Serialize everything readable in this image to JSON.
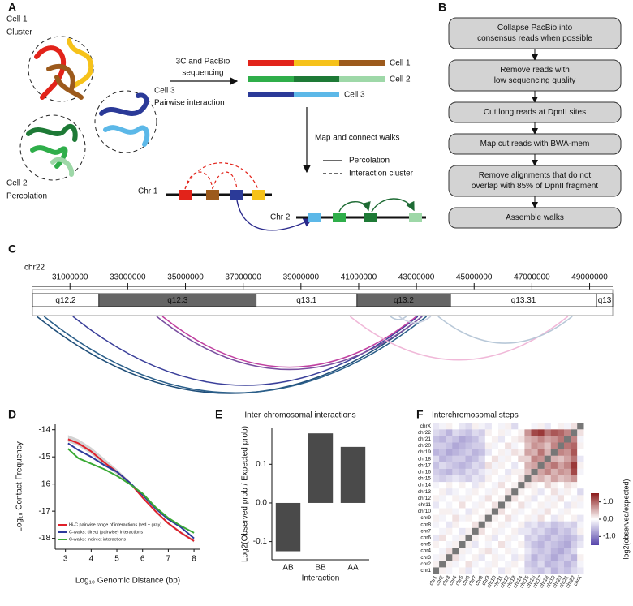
{
  "panel_labels": [
    "A",
    "B",
    "C",
    "D",
    "E",
    "F"
  ],
  "panel_a": {
    "cell1": "Cell 1",
    "cell1_type": "Cluster",
    "cell2": "Cell 2",
    "cell2_type": "Percolation",
    "cell3": "Cell 3",
    "cell3_type": "Pairwise interaction",
    "step1_line1": "3C and PacBio",
    "step1_line2": "sequencing",
    "read_labels": [
      "Cell 1",
      "Cell 2",
      "Cell 3"
    ],
    "step2": "Map and connect walks",
    "legend": [
      "Percolation",
      "Interaction cluster"
    ],
    "chromosomes": [
      "Chr 1",
      "Chr 2"
    ]
  },
  "panel_b": {
    "steps": [
      [
        "Collapse PacBio into",
        "consensus reads when possible"
      ],
      [
        "Remove reads with",
        "low sequencing quality"
      ],
      [
        "Cut long reads at DpnII sites"
      ],
      [
        "Map cut reads with BWA-mem"
      ],
      [
        "Remove alignments that do not",
        "overlap with 85% of DpnII fragment"
      ],
      [
        "Assemble walks"
      ]
    ]
  },
  "panel_c": {
    "chromosome": "chr22",
    "xlim": [
      29700000,
      49800000
    ],
    "xticks": [
      31000000,
      33000000,
      35000000,
      37000000,
      39000000,
      41000000,
      43000000,
      45000000,
      47000000,
      49000000
    ],
    "bands": [
      {
        "name": "q12.2",
        "start": 29700000,
        "end": 32000000,
        "color": "#ffffff"
      },
      {
        "name": "q12.3",
        "start": 32000000,
        "end": 37450000,
        "color": "#666666"
      },
      {
        "name": "q13.1",
        "start": 37450000,
        "end": 40940000,
        "color": "#ffffff"
      },
      {
        "name": "q13.2",
        "start": 40940000,
        "end": 44180000,
        "color": "#666666"
      },
      {
        "name": "q13.31",
        "start": 44180000,
        "end": 49240000,
        "color": "#ffffff"
      },
      {
        "name": "q13",
        "start": 49240000,
        "end": 49800000,
        "color": "#ffffff"
      }
    ],
    "arcs": [
      {
        "start": 29850000,
        "end": 43200000,
        "color": "#1f4e79"
      },
      {
        "start": 30100000,
        "end": 43350000,
        "color": "#2b5f8a"
      },
      {
        "start": 31100000,
        "end": 43050000,
        "color": "#3a3f9a"
      },
      {
        "start": 34000000,
        "end": 43200000,
        "color": "#7a4fa0"
      },
      {
        "start": 34200000,
        "end": 43000000,
        "color": "#c040a0"
      },
      {
        "start": 40700000,
        "end": 48250000,
        "color": "#f0b8d8"
      },
      {
        "start": 43750000,
        "end": 48400000,
        "color": "#b8c8d8"
      },
      {
        "start": 42100000,
        "end": 42650000,
        "color": "#b8c8d8"
      },
      {
        "start": 42400000,
        "end": 43500000,
        "color": "#c8d0e0"
      }
    ]
  },
  "chart_data": [
    {
      "type": "line",
      "xlabel": "Log₁₀ Genomic Distance (bp)",
      "ylabel": "Log₁₀ Contact Frequency",
      "x": [
        3.1,
        3.5,
        4,
        4.5,
        5,
        5.5,
        6,
        6.5,
        7,
        7.5,
        8
      ],
      "xlim": [
        2.6,
        8.25
      ],
      "xticks": [
        3,
        4,
        5,
        6,
        7,
        8
      ],
      "ylim": [
        -18.4,
        -13.8
      ],
      "yticks": [
        -14,
        -15,
        -16,
        -17,
        -18
      ],
      "legend": "lower left",
      "band": {
        "color": "#c8c8c8",
        "upper": [
          -14.2,
          -14.35,
          -14.65,
          -15.05,
          -15.45,
          -15.9,
          -16.45,
          -16.95,
          -17.4,
          -17.75,
          -18.05
        ],
        "lower": [
          -14.45,
          -14.6,
          -14.9,
          -15.3,
          -15.65,
          -16.0,
          -16.55,
          -17.05,
          -17.5,
          -17.85,
          -18.15
        ]
      },
      "series": [
        {
          "name": "Hi-C pairwise range of interactions (red + gray)",
          "color": "#e0202a",
          "values": [
            -14.35,
            -14.5,
            -14.8,
            -15.2,
            -15.55,
            -15.95,
            -16.5,
            -17.0,
            -17.45,
            -17.8,
            -18.1
          ]
        },
        {
          "name": "C-walks: direct (pairwise) interactions",
          "color": "#2d3a9c",
          "values": [
            -14.5,
            -14.75,
            -15.0,
            -15.3,
            -15.55,
            -15.95,
            -16.4,
            -16.9,
            -17.3,
            -17.6,
            -18.0
          ]
        },
        {
          "name": "C-walks: indirect interactions",
          "color": "#3aaa35",
          "values": [
            -14.7,
            -15.05,
            -15.25,
            -15.45,
            -15.7,
            -16.0,
            -16.35,
            -16.85,
            -17.25,
            -17.55,
            -17.8
          ]
        }
      ]
    },
    {
      "type": "bar",
      "title": "Inter-chromosomal interactions",
      "xlabel": "Interaction",
      "ylabel": "Log2(Observed prob / Expected prob)",
      "categories": [
        "AB",
        "BB",
        "AA"
      ],
      "values": [
        -0.125,
        0.18,
        0.145
      ],
      "color": "#4a4a4a",
      "ylim": [
        -0.147,
        0.193
      ],
      "yticks": [
        -0.1,
        {
          "value": 0,
          "label": "0.0"
        },
        0.1
      ]
    },
    {
      "type": "heatmap",
      "title": "Interchromosomal steps",
      "categories": [
        "chr1",
        "chr2",
        "chr3",
        "chr4",
        "chr5",
        "chr6",
        "chr7",
        "chr8",
        "chr9",
        "chr10",
        "chr11",
        "chr12",
        "chr13",
        "chr14",
        "chr15",
        "chr16",
        "chr17",
        "chr18",
        "chr19",
        "chr20",
        "chr21",
        "chr22",
        "chrX"
      ],
      "null_color": "#777777",
      "colorbar": {
        "label": "log2(observed/expected)",
        "lim": [
          -1.5,
          1.5
        ],
        "colors": [
          "#5544aa",
          "#ffffff",
          "#8b1a1a"
        ],
        "ticks": [
          {
            "value": 1,
            "label": "1.0"
          },
          {
            "value": 0,
            "label": "0.0"
          },
          {
            "value": -1,
            "label": "-1.0"
          }
        ]
      },
      "values": [
        [
          null,
          0.1,
          -0.1,
          0.0,
          0.1,
          -0.2,
          0.0,
          -0.1,
          0.1,
          0.0,
          -0.2,
          0.1,
          0.0,
          -0.1,
          -0.3,
          -0.4,
          -0.5,
          -0.3,
          -0.6,
          -0.4,
          -0.5,
          -0.3,
          -0.2
        ],
        [
          0.1,
          null,
          0.1,
          -0.1,
          0.0,
          0.2,
          -0.1,
          0.0,
          -0.1,
          0.1,
          0.0,
          -0.1,
          0.1,
          0.0,
          -0.4,
          -0.5,
          -0.3,
          -0.6,
          -0.5,
          -0.4,
          -0.6,
          -0.4,
          -0.1
        ],
        [
          -0.1,
          0.1,
          null,
          0.2,
          -0.1,
          0.0,
          0.1,
          -0.2,
          0.0,
          0.1,
          -0.1,
          0.0,
          -0.2,
          0.1,
          -0.3,
          -0.6,
          -0.4,
          -0.5,
          -0.7,
          -0.5,
          -0.4,
          -0.6,
          0.1
        ],
        [
          0.0,
          -0.1,
          0.2,
          null,
          0.1,
          -0.1,
          0.0,
          0.1,
          0.2,
          -0.1,
          0.0,
          0.1,
          -0.1,
          0.0,
          -0.2,
          -0.4,
          -0.5,
          -0.4,
          -0.6,
          -0.7,
          -0.5,
          -0.3,
          0.0
        ],
        [
          0.1,
          0.0,
          -0.1,
          0.1,
          null,
          0.1,
          -0.2,
          0.0,
          -0.1,
          0.0,
          0.2,
          -0.1,
          0.0,
          0.1,
          -0.3,
          -0.5,
          -0.6,
          -0.4,
          -0.5,
          -0.6,
          -0.7,
          -0.4,
          -0.2
        ],
        [
          -0.2,
          0.2,
          0.0,
          -0.1,
          0.1,
          null,
          0.1,
          0.0,
          0.1,
          -0.2,
          0.0,
          0.1,
          -0.1,
          0.0,
          -0.4,
          -0.3,
          -0.5,
          -0.6,
          -0.4,
          -0.5,
          -0.6,
          -0.5,
          -0.3
        ],
        [
          0.0,
          -0.1,
          0.1,
          0.0,
          -0.2,
          0.1,
          null,
          0.2,
          0.0,
          0.1,
          -0.1,
          0.0,
          0.1,
          -0.2,
          -0.2,
          -0.4,
          -0.3,
          -0.5,
          -0.6,
          -0.4,
          -0.5,
          -0.3,
          0.1
        ],
        [
          -0.1,
          0.0,
          -0.2,
          0.1,
          0.0,
          0.0,
          0.2,
          null,
          0.1,
          0.0,
          0.1,
          -0.1,
          0.0,
          0.1,
          -0.3,
          -0.2,
          -0.4,
          -0.3,
          -0.5,
          -0.4,
          -0.3,
          -0.4,
          -0.1
        ],
        [
          0.1,
          -0.1,
          0.0,
          0.2,
          -0.1,
          0.1,
          0.0,
          0.1,
          null,
          0.1,
          0.0,
          0.2,
          -0.1,
          0.0,
          0.1,
          -0.1,
          0.2,
          0.0,
          -0.2,
          0.1,
          0.0,
          0.1,
          -0.2
        ],
        [
          0.0,
          0.1,
          0.1,
          -0.1,
          0.0,
          -0.2,
          0.1,
          0.0,
          0.1,
          null,
          0.2,
          0.0,
          0.1,
          -0.1,
          0.0,
          0.1,
          -0.1,
          0.2,
          0.0,
          -0.1,
          0.1,
          0.0,
          0.0
        ],
        [
          -0.2,
          0.0,
          -0.1,
          0.0,
          0.2,
          0.0,
          -0.1,
          0.1,
          0.0,
          0.2,
          null,
          0.1,
          0.0,
          0.2,
          -0.1,
          0.0,
          0.1,
          -0.1,
          0.1,
          0.0,
          -0.2,
          0.1,
          -0.1
        ],
        [
          0.1,
          -0.1,
          0.0,
          0.1,
          -0.1,
          0.1,
          0.0,
          -0.1,
          0.2,
          0.0,
          0.1,
          null,
          0.2,
          0.0,
          0.1,
          -0.2,
          0.0,
          0.1,
          -0.1,
          0.2,
          0.0,
          -0.1,
          0.1
        ],
        [
          0.0,
          0.1,
          -0.2,
          -0.1,
          0.0,
          -0.1,
          0.1,
          0.0,
          -0.1,
          0.1,
          0.0,
          0.2,
          null,
          0.1,
          0.0,
          0.1,
          -0.2,
          0.0,
          0.2,
          -0.1,
          0.1,
          0.0,
          -0.3
        ],
        [
          -0.1,
          0.0,
          0.1,
          0.0,
          0.1,
          0.0,
          -0.2,
          0.1,
          0.0,
          -0.1,
          0.2,
          0.0,
          0.1,
          null,
          0.2,
          0.1,
          0.0,
          0.3,
          0.1,
          0.0,
          0.2,
          0.1,
          0.0
        ],
        [
          -0.3,
          -0.4,
          -0.3,
          -0.2,
          -0.3,
          -0.4,
          -0.2,
          -0.3,
          0.1,
          0.0,
          -0.1,
          0.1,
          0.0,
          0.2,
          null,
          0.4,
          0.5,
          0.3,
          0.6,
          0.4,
          0.5,
          0.7,
          0.0
        ],
        [
          -0.4,
          -0.5,
          -0.6,
          -0.4,
          -0.5,
          -0.3,
          -0.4,
          -0.2,
          -0.1,
          0.1,
          0.0,
          -0.2,
          0.1,
          0.1,
          0.4,
          null,
          0.6,
          0.8,
          0.5,
          0.7,
          0.6,
          1.2,
          -0.1
        ],
        [
          -0.5,
          -0.3,
          -0.4,
          -0.5,
          -0.6,
          -0.5,
          -0.3,
          -0.4,
          0.2,
          -0.1,
          0.1,
          0.0,
          -0.2,
          0.0,
          0.5,
          0.6,
          null,
          0.7,
          0.9,
          0.6,
          0.8,
          1.3,
          0.1
        ],
        [
          -0.3,
          -0.6,
          -0.5,
          -0.4,
          -0.4,
          -0.6,
          -0.5,
          -0.3,
          0.0,
          0.2,
          -0.1,
          0.1,
          0.0,
          0.3,
          0.3,
          0.8,
          0.7,
          null,
          0.5,
          0.4,
          0.6,
          0.9,
          -0.2
        ],
        [
          -0.6,
          -0.5,
          -0.7,
          -0.6,
          -0.5,
          -0.4,
          -0.6,
          -0.5,
          -0.2,
          0.0,
          0.1,
          -0.1,
          0.2,
          0.1,
          0.6,
          0.5,
          0.9,
          0.5,
          null,
          0.8,
          0.7,
          1.1,
          0.0
        ],
        [
          -0.4,
          -0.4,
          -0.5,
          -0.7,
          -0.6,
          -0.5,
          -0.4,
          -0.4,
          0.1,
          -0.1,
          0.0,
          0.2,
          -0.1,
          0.0,
          0.4,
          0.7,
          0.6,
          0.4,
          0.8,
          null,
          0.9,
          1.0,
          0.1
        ],
        [
          -0.5,
          -0.6,
          -0.4,
          -0.5,
          -0.7,
          -0.6,
          -0.5,
          -0.3,
          0.0,
          0.1,
          -0.2,
          0.0,
          0.1,
          0.2,
          0.5,
          0.6,
          0.8,
          0.6,
          0.7,
          0.9,
          null,
          0.8,
          -0.1
        ],
        [
          -0.3,
          -0.4,
          -0.6,
          -0.3,
          -0.4,
          -0.5,
          -0.3,
          -0.4,
          0.1,
          0.0,
          0.1,
          -0.1,
          0.0,
          0.1,
          0.7,
          1.2,
          1.3,
          0.9,
          1.1,
          1.0,
          0.8,
          null,
          0.2
        ],
        [
          -0.2,
          -0.1,
          0.1,
          0.0,
          -0.2,
          -0.3,
          0.1,
          -0.1,
          -0.2,
          0.0,
          -0.1,
          0.1,
          -0.3,
          0.0,
          0.0,
          -0.1,
          0.1,
          -0.2,
          0.0,
          0.1,
          -0.1,
          0.2,
          null
        ]
      ]
    }
  ]
}
